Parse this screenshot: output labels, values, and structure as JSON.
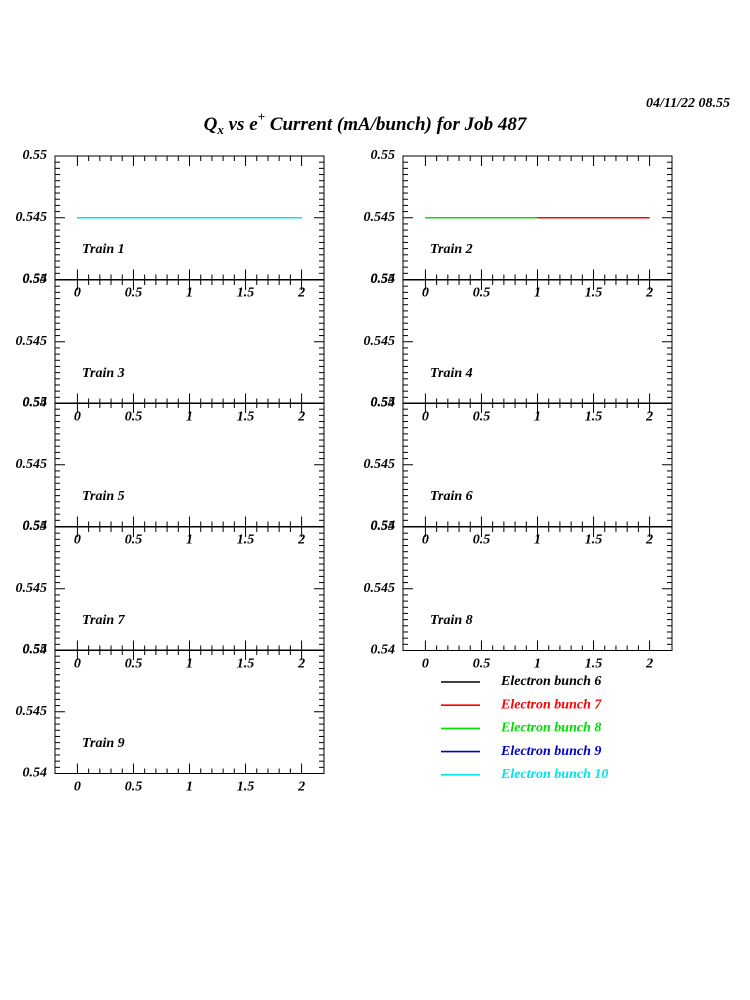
{
  "timestamp": "04/11/22   08.55",
  "title": {
    "q": "Q",
    "sub": "x",
    "mid": " vs e",
    "sup": "+",
    "rest": " Current (mA/bunch) for Job 487"
  },
  "chart_data": [
    {
      "type": "line",
      "title": "Train 1",
      "xlim": [
        -0.2,
        2.2
      ],
      "ylim": [
        0.54,
        0.55
      ],
      "xticks": [
        0,
        0.5,
        1,
        1.5,
        2
      ],
      "yticks": [
        0.54,
        0.545,
        0.55
      ],
      "series": [
        {
          "name": "Electron bunch 6",
          "color": "#000000",
          "x": [
            0,
            2
          ],
          "values": [
            0.545,
            0.545
          ]
        },
        {
          "name": "Electron bunch 7",
          "color": "#ff0000",
          "x": [
            0,
            2
          ],
          "values": [
            0.545,
            0.545
          ]
        },
        {
          "name": "Electron bunch 8",
          "color": "#00dd00",
          "x": [
            0,
            2
          ],
          "values": [
            0.545,
            0.545
          ]
        },
        {
          "name": "Electron bunch 9",
          "color": "#0000cc",
          "x": [
            0,
            2
          ],
          "values": [
            0.545,
            0.545
          ]
        },
        {
          "name": "Electron bunch 10",
          "color": "#00e5e5",
          "x": [
            0,
            2
          ],
          "values": [
            0.545,
            0.545
          ]
        }
      ]
    },
    {
      "type": "line",
      "title": "Train 2",
      "xlim": [
        -0.2,
        2.2
      ],
      "ylim": [
        0.54,
        0.55
      ],
      "xticks": [
        0,
        0.5,
        1,
        1.5,
        2
      ],
      "yticks": [
        0.54,
        0.545,
        0.55
      ],
      "series": [
        {
          "name": "Electron bunch 6",
          "color": "#000000",
          "x": [
            0,
            2
          ],
          "values": [
            0.545,
            0.545
          ]
        },
        {
          "name": "Electron bunch 7",
          "color": "#ff0000",
          "x": [
            0,
            2
          ],
          "values": [
            0.545,
            0.545
          ]
        },
        {
          "name": "Electron bunch 8",
          "color": "#00dd00",
          "x": [
            0,
            1
          ],
          "values": [
            0.545,
            0.545
          ]
        }
      ]
    },
    {
      "type": "line",
      "title": "Train 3",
      "xlim": [
        -0.2,
        2.2
      ],
      "ylim": [
        0.54,
        0.55
      ],
      "xticks": [
        0,
        0.5,
        1,
        1.5,
        2
      ],
      "yticks": [
        0.54,
        0.545,
        0.55
      ],
      "series": []
    },
    {
      "type": "line",
      "title": "Train 4",
      "xlim": [
        -0.2,
        2.2
      ],
      "ylim": [
        0.54,
        0.55
      ],
      "xticks": [
        0,
        0.5,
        1,
        1.5,
        2
      ],
      "yticks": [
        0.54,
        0.545,
        0.55
      ],
      "series": []
    },
    {
      "type": "line",
      "title": "Train 5",
      "xlim": [
        -0.2,
        2.2
      ],
      "ylim": [
        0.54,
        0.55
      ],
      "xticks": [
        0,
        0.5,
        1,
        1.5,
        2
      ],
      "yticks": [
        0.54,
        0.545,
        0.55
      ],
      "series": []
    },
    {
      "type": "line",
      "title": "Train 6",
      "xlim": [
        -0.2,
        2.2
      ],
      "ylim": [
        0.54,
        0.55
      ],
      "xticks": [
        0,
        0.5,
        1,
        1.5,
        2
      ],
      "yticks": [
        0.54,
        0.545,
        0.55
      ],
      "series": []
    },
    {
      "type": "line",
      "title": "Train 7",
      "xlim": [
        -0.2,
        2.2
      ],
      "ylim": [
        0.54,
        0.55
      ],
      "xticks": [
        0,
        0.5,
        1,
        1.5,
        2
      ],
      "yticks": [
        0.54,
        0.545,
        0.55
      ],
      "series": []
    },
    {
      "type": "line",
      "title": "Train 8",
      "xlim": [
        -0.2,
        2.2
      ],
      "ylim": [
        0.54,
        0.55
      ],
      "xticks": [
        0,
        0.5,
        1,
        1.5,
        2
      ],
      "yticks": [
        0.54,
        0.545,
        0.55
      ],
      "series": []
    },
    {
      "type": "line",
      "title": "Train 9",
      "xlim": [
        -0.2,
        2.2
      ],
      "ylim": [
        0.54,
        0.55
      ],
      "xticks": [
        0,
        0.5,
        1,
        1.5,
        2
      ],
      "yticks": [
        0.54,
        0.545,
        0.55
      ],
      "series": []
    }
  ]
}
